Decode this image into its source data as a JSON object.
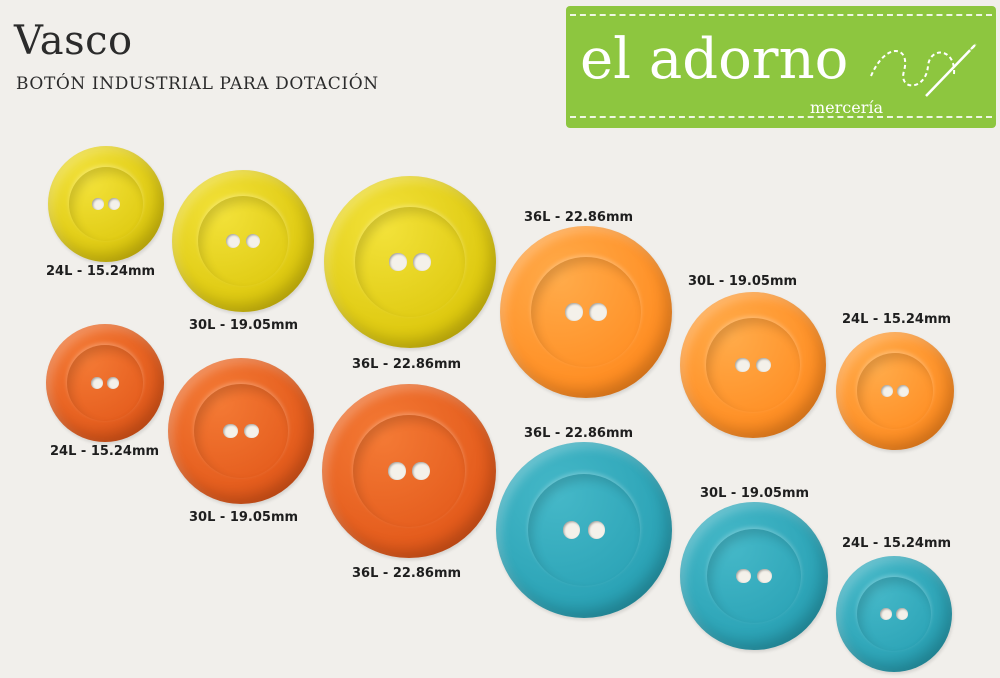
{
  "header": {
    "title": "Vasco",
    "subtitle": "BOTÓN INDUSTRIAL PARA DOTACIÓN"
  },
  "logo": {
    "name": "el adorno",
    "tagline": "mercería"
  },
  "colors": {
    "yellow": "#ddc80e",
    "orange": "#e35a1b",
    "light_orange": "#ff8d22",
    "teal": "#2aa2b5",
    "logo_green": "#8dc63f"
  },
  "buttons": [
    {
      "color": "yellow",
      "label": "24L - 15.24mm"
    },
    {
      "color": "yellow",
      "label": "30L - 19.05mm"
    },
    {
      "color": "yellow",
      "label": "36L - 22.86mm"
    },
    {
      "color": "orange",
      "label": "24L - 15.24mm"
    },
    {
      "color": "orange",
      "label": "30L - 19.05mm"
    },
    {
      "color": "orange",
      "label": "36L - 22.86mm"
    },
    {
      "color": "light_orange",
      "label": "36L - 22.86mm"
    },
    {
      "color": "light_orange",
      "label": "30L - 19.05mm"
    },
    {
      "color": "light_orange",
      "label": "24L - 15.24mm"
    },
    {
      "color": "teal",
      "label": "36L - 22.86mm"
    },
    {
      "color": "teal",
      "label": "30L - 19.05mm"
    },
    {
      "color": "teal",
      "label": "24L - 15.24mm"
    }
  ]
}
